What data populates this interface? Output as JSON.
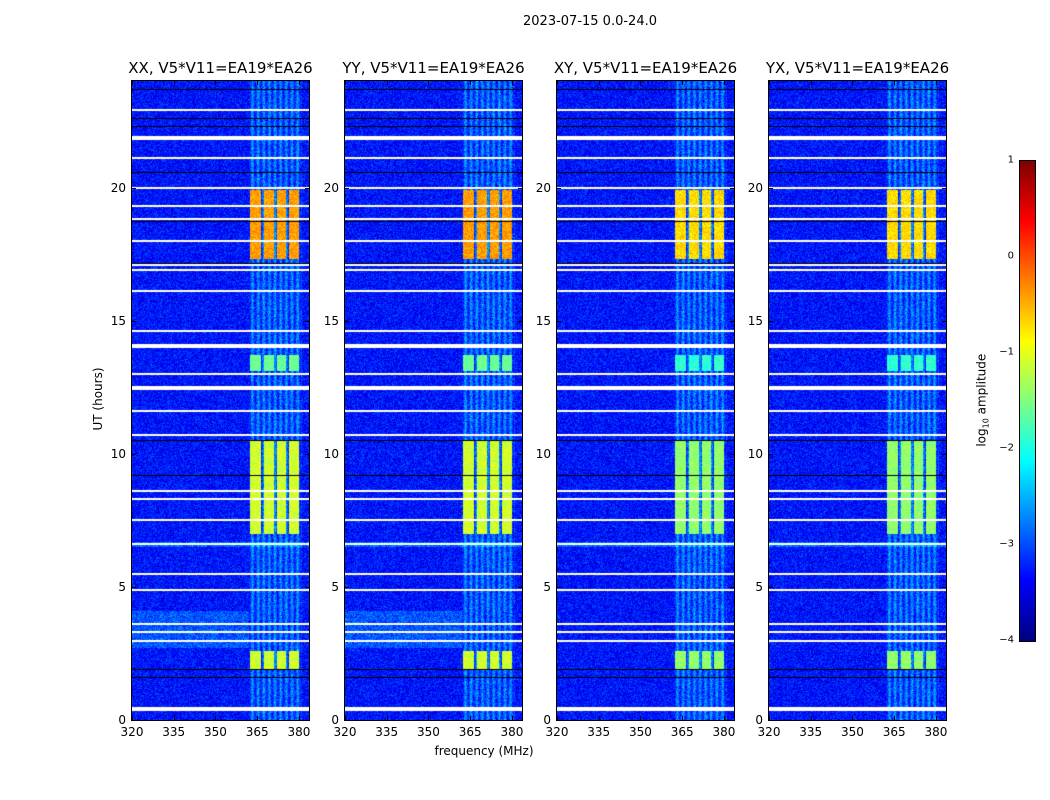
{
  "chart_data": {
    "type": "heatmap",
    "title": "2023-07-15 0.0-24.0",
    "xlabel": "frequency (MHz)",
    "ylabel": "UT (hours)",
    "xlim": [
      320,
      383.6
    ],
    "ylim": [
      0,
      24
    ],
    "xticks": [
      320,
      335,
      350,
      365,
      380
    ],
    "yticks": [
      0,
      5,
      10,
      15,
      20
    ],
    "panels": [
      {
        "title": "XX, V5*V11=EA19*EA26",
        "pol": "XX"
      },
      {
        "title": "YY, V5*V11=EA19*EA26",
        "pol": "YY"
      },
      {
        "title": "XY, V5*V11=EA19*EA26",
        "pol": "XY"
      },
      {
        "title": "YX, V5*V11=EA19*EA26",
        "pol": "YX"
      }
    ],
    "colorbar": {
      "label": "log10 amplitude",
      "label_main": "log",
      "label_sub": "10",
      "label_rest": " amplitude",
      "range": [
        -4,
        1
      ],
      "ticks": [
        "−4",
        "−3",
        "−2",
        "−1",
        "0",
        "1"
      ],
      "colormap": "jet"
    },
    "background_log_amplitude": -3.3,
    "rfi_band_mhz": [
      362,
      381
    ],
    "rfi_subchannels_mhz": [
      [
        362.5,
        366.5
      ],
      [
        367.5,
        371
      ],
      [
        372,
        375.5
      ],
      [
        376.5,
        380
      ]
    ],
    "rfi_events": [
      {
        "ut": [
          17.3,
          19.9
        ],
        "log_amplitude": -0.4
      },
      {
        "ut": [
          7.0,
          10.5
        ],
        "log_amplitude": -1.1
      },
      {
        "ut": [
          1.9,
          2.6
        ],
        "log_amplitude": -1.1
      },
      {
        "ut": [
          13.1,
          13.7
        ],
        "log_amplitude": -1.6
      }
    ],
    "flagged_ut_hours": [
      0.45,
      2.95,
      3.3,
      3.6,
      4.9,
      5.5,
      6.6,
      7.5,
      8.3,
      8.6,
      10.7,
      11.6,
      12.5,
      13.0,
      14.1,
      14.6,
      16.1,
      16.9,
      17.1,
      18.0,
      18.8,
      19.3,
      20.0,
      21.1,
      21.9,
      22.9
    ],
    "dark_ut_hours": [
      1.6,
      1.9,
      9.2,
      10.5,
      17.15,
      18.75,
      20.6,
      22.3,
      22.6,
      23.7
    ]
  }
}
